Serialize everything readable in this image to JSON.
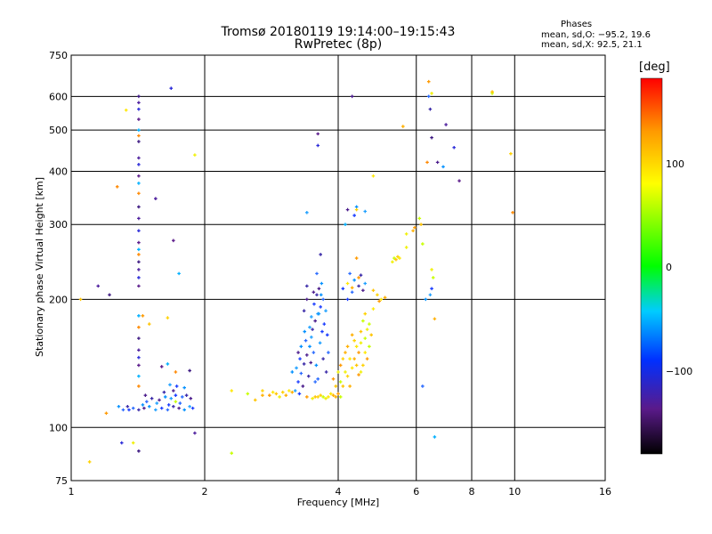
{
  "chart_data": {
    "type": "scatter",
    "title": "Tromsø 20180119 19:14:00–19:15:43",
    "subtitle": "RwPretec (8p)",
    "xlabel": "Frequency [MHz]",
    "ylabel": "Stationary phase Virtual Height [km]",
    "x_scale": "log2",
    "y_scale": "log",
    "xlim": [
      1,
      16
    ],
    "ylim": [
      75,
      750
    ],
    "x_ticks": [
      1,
      2,
      4,
      6,
      8,
      10,
      16
    ],
    "y_ticks": [
      75,
      100,
      200,
      300,
      400,
      500,
      600,
      750
    ],
    "grid": true,
    "stats": {
      "heading": "Phases",
      "line1": "mean, sd,O:  −95.2,  19.6",
      "line2": "mean, sd,X:   92.5,  21.1"
    },
    "colorbar": {
      "label": "[deg]",
      "range": [
        -180,
        180
      ],
      "ticks": [
        100,
        0,
        -100
      ],
      "tick_labels": [
        "100",
        "0",
        "−100"
      ]
    },
    "series": [
      {
        "points": [
          [
            1.35,
            110
          ],
          [
            1.38,
            111
          ],
          [
            1.42,
            110
          ],
          [
            1.46,
            111
          ],
          [
            1.5,
            112
          ],
          [
            1.55,
            110
          ],
          [
            1.6,
            111
          ],
          [
            1.65,
            110
          ],
          [
            1.7,
            112
          ],
          [
            1.75,
            111
          ],
          [
            1.8,
            110
          ],
          [
            1.85,
            112
          ],
          [
            1.88,
            111
          ],
          [
            1.48,
            115
          ],
          [
            1.52,
            117
          ],
          [
            1.58,
            116
          ],
          [
            1.63,
            118
          ],
          [
            1.68,
            117
          ],
          [
            1.72,
            119
          ],
          [
            1.78,
            118
          ],
          [
            1.82,
            119
          ],
          [
            1.86,
            117
          ],
          [
            1.45,
            113
          ],
          [
            1.56,
            114
          ],
          [
            1.66,
            113
          ],
          [
            1.76,
            114
          ],
          [
            1.62,
            121
          ],
          [
            1.7,
            122
          ],
          [
            1.8,
            124
          ],
          [
            1.67,
            126
          ],
          [
            1.73,
            125
          ],
          [
            1.31,
            110
          ],
          [
            1.34,
            112
          ],
          [
            1.47,
            119
          ],
          [
            1.28,
            112
          ],
          [
            3.2,
            122
          ],
          [
            3.25,
            128
          ],
          [
            3.3,
            134
          ],
          [
            3.35,
            141
          ],
          [
            3.4,
            148
          ],
          [
            3.45,
            155
          ],
          [
            3.22,
            138
          ],
          [
            3.28,
            145
          ],
          [
            3.38,
            160
          ],
          [
            3.5,
            170
          ],
          [
            3.55,
            178
          ],
          [
            3.6,
            185
          ],
          [
            3.48,
            163
          ],
          [
            3.65,
            192
          ],
          [
            3.7,
            200
          ],
          [
            3.58,
            205
          ],
          [
            3.62,
            212
          ],
          [
            3.67,
            218
          ],
          [
            3.75,
            188
          ],
          [
            3.72,
            175
          ],
          [
            3.52,
            150
          ],
          [
            3.43,
            132
          ],
          [
            3.33,
            125
          ],
          [
            3.57,
            140
          ],
          [
            3.64,
            158
          ],
          [
            3.78,
            165
          ],
          [
            3.8,
            150
          ],
          [
            3.35,
            188
          ],
          [
            3.4,
            200
          ],
          [
            3.3,
            155
          ],
          [
            3.45,
            172
          ],
          [
            3.53,
            195
          ],
          [
            3.6,
            130
          ],
          [
            3.7,
            145
          ],
          [
            3.25,
            150
          ],
          [
            3.15,
            135
          ],
          [
            3.48,
            182
          ],
          [
            3.68,
            168
          ],
          [
            3.58,
            230
          ],
          [
            3.4,
            215
          ],
          [
            3.52,
            208
          ],
          [
            3.36,
            168
          ],
          [
            3.62,
            185
          ],
          [
            3.27,
            120
          ],
          [
            3.55,
            128
          ],
          [
            3.76,
            135
          ],
          [
            3.47,
            142
          ],
          [
            3.66,
            205
          ],
          [
            3.4,
            320
          ],
          [
            4.2,
            200
          ],
          [
            4.3,
            208
          ],
          [
            4.45,
            215
          ],
          [
            4.55,
            210
          ],
          [
            4.35,
            222
          ],
          [
            4.6,
            218
          ],
          [
            4.1,
            212
          ],
          [
            4.25,
            230
          ],
          [
            4.5,
            228
          ],
          [
            4.2,
            325
          ],
          [
            4.4,
            330
          ],
          [
            4.6,
            322
          ],
          [
            4.35,
            315
          ],
          [
            6.2,
            125
          ],
          [
            3.65,
            255
          ],
          [
            4.3,
            600
          ],
          [
            6.3,
            200
          ],
          [
            6.45,
            205
          ],
          [
            6.5,
            212
          ],
          [
            6.4,
            600
          ],
          [
            6.45,
            560
          ],
          [
            6.7,
            420
          ],
          [
            6.9,
            410
          ]
        ]
      },
      {
        "points": [
          [
            3.6,
            118
          ],
          [
            3.8,
            118
          ],
          [
            3.9,
            119
          ],
          [
            4.0,
            120
          ],
          [
            3.75,
            117
          ],
          [
            4.05,
            118
          ],
          [
            3.55,
            118
          ],
          [
            3.65,
            119
          ],
          [
            3.85,
            120
          ],
          [
            3.95,
            118
          ],
          [
            3.4,
            118
          ],
          [
            3.5,
            117
          ],
          [
            3.7,
            118
          ],
          [
            4.1,
            125
          ],
          [
            4.2,
            132
          ],
          [
            4.3,
            138
          ],
          [
            4.35,
            145
          ],
          [
            4.45,
            150
          ],
          [
            4.5,
            158
          ],
          [
            4.6,
            162
          ],
          [
            4.4,
            140
          ],
          [
            4.55,
            140
          ],
          [
            4.25,
            145
          ],
          [
            4.15,
            150
          ],
          [
            4.05,
            140
          ],
          [
            4.65,
            170
          ],
          [
            4.7,
            175
          ],
          [
            4.5,
            168
          ],
          [
            4.35,
            160
          ],
          [
            4.6,
            150
          ],
          [
            4.25,
            125
          ],
          [
            4.45,
            133
          ],
          [
            4.15,
            135
          ],
          [
            4.55,
            178
          ],
          [
            4.75,
            165
          ],
          [
            4.1,
            145
          ],
          [
            4.4,
            155
          ],
          [
            4.3,
            165
          ],
          [
            4.65,
            145
          ],
          [
            4.5,
            135
          ],
          [
            4.05,
            128
          ],
          [
            3.95,
            125
          ],
          [
            4.6,
            185
          ],
          [
            4.8,
            190
          ],
          [
            4.2,
            155
          ],
          [
            3.9,
            130
          ],
          [
            4.0,
            135
          ],
          [
            4.7,
            155
          ],
          [
            4.8,
            210
          ],
          [
            4.9,
            205
          ],
          [
            5.0,
            200
          ],
          [
            5.1,
            202
          ],
          [
            4.95,
            198
          ],
          [
            5.3,
            245
          ],
          [
            5.35,
            250
          ],
          [
            5.4,
            248
          ],
          [
            5.45,
            252
          ],
          [
            5.5,
            250
          ],
          [
            5.9,
            290
          ],
          [
            5.95,
            295
          ],
          [
            5.7,
            285
          ],
          [
            6.1,
            310
          ],
          [
            6.15,
            300
          ],
          [
            4.4,
            325
          ],
          [
            4.2,
            218
          ],
          [
            4.3,
            213
          ],
          [
            4.45,
            225
          ],
          [
            5.7,
            265
          ],
          [
            6.2,
            270
          ],
          [
            2.9,
            120
          ],
          [
            3.0,
            121
          ],
          [
            3.1,
            122
          ],
          [
            3.15,
            121
          ],
          [
            2.8,
            119
          ],
          [
            2.95,
            118
          ],
          [
            2.5,
            120
          ],
          [
            2.6,
            116
          ],
          [
            2.7,
            122
          ],
          [
            2.85,
            121
          ],
          [
            3.05,
            119
          ],
          [
            1.45,
            183
          ],
          [
            1.9,
            437
          ],
          [
            2.3,
            87
          ],
          [
            1.05,
            200
          ],
          [
            1.1,
            83
          ],
          [
            1.33,
            557
          ],
          [
            5.6,
            510
          ],
          [
            6.4,
            650
          ],
          [
            6.5,
            610
          ],
          [
            8.9,
            610
          ],
          [
            8.9,
            615
          ],
          [
            9.8,
            440
          ],
          [
            4.8,
            390
          ],
          [
            6.6,
            180
          ],
          [
            1.2,
            108
          ],
          [
            1.38,
            92
          ],
          [
            1.72,
            115
          ],
          [
            1.5,
            175
          ],
          [
            1.65,
            181
          ],
          [
            2.3,
            122
          ],
          [
            2.7,
            119
          ],
          [
            4.4,
            250
          ],
          [
            6.5,
            235
          ],
          [
            6.55,
            225
          ]
        ]
      },
      {
        "points": [
          [
            1.42,
            600
          ],
          [
            1.42,
            580
          ],
          [
            1.42,
            560
          ],
          [
            1.42,
            530
          ],
          [
            1.42,
            500
          ],
          [
            1.42,
            485
          ],
          [
            1.42,
            470
          ],
          [
            1.42,
            430
          ],
          [
            1.42,
            415
          ],
          [
            1.42,
            390
          ],
          [
            1.42,
            375
          ],
          [
            1.42,
            355
          ],
          [
            1.42,
            330
          ],
          [
            1.42,
            310
          ],
          [
            1.42,
            290
          ],
          [
            1.42,
            272
          ],
          [
            1.42,
            262
          ],
          [
            1.42,
            255
          ],
          [
            1.42,
            245
          ],
          [
            1.42,
            235
          ],
          [
            1.42,
            225
          ],
          [
            1.42,
            215
          ],
          [
            1.42,
            183
          ],
          [
            1.42,
            172
          ],
          [
            1.42,
            162
          ],
          [
            1.42,
            152
          ],
          [
            1.42,
            146
          ],
          [
            1.42,
            140
          ],
          [
            1.42,
            132
          ],
          [
            1.42,
            125
          ],
          [
            1.42,
            88
          ],
          [
            1.55,
            345
          ],
          [
            1.68,
            627
          ],
          [
            1.7,
            275
          ],
          [
            1.75,
            230
          ],
          [
            1.27,
            368
          ],
          [
            1.22,
            205
          ],
          [
            1.15,
            215
          ],
          [
            1.3,
            92
          ],
          [
            1.6,
            139
          ],
          [
            1.65,
            141
          ],
          [
            1.72,
            135
          ],
          [
            1.85,
            136
          ],
          [
            1.9,
            97
          ],
          [
            3.6,
            460
          ],
          [
            3.6,
            490
          ],
          [
            4.15,
            300
          ],
          [
            6.35,
            420
          ],
          [
            6.5,
            480
          ],
          [
            7.0,
            515
          ],
          [
            7.3,
            455
          ],
          [
            7.5,
            380
          ],
          [
            6.6,
            95
          ],
          [
            9.9,
            320
          ]
        ]
      }
    ]
  }
}
